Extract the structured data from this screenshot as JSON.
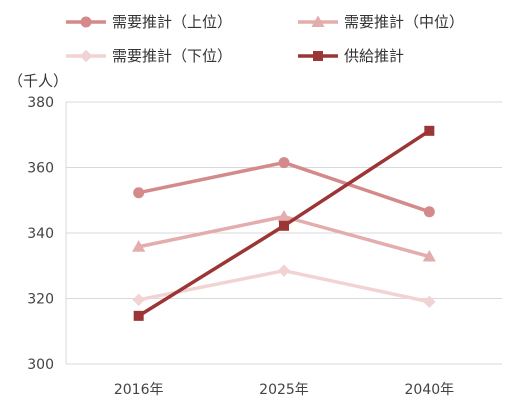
{
  "chart_data": {
    "type": "line",
    "unit_label": "（千人）",
    "categories": [
      "2016年",
      "2025年",
      "2040年"
    ],
    "ylim": [
      300,
      380
    ],
    "yticks": [
      300,
      320,
      340,
      360,
      380
    ],
    "grid": true,
    "legend_placement": "top",
    "series": [
      {
        "name": "需要推計（上位）",
        "values": [
          352.3,
          361.5,
          346.5
        ],
        "color": "#d48a8a",
        "marker": "circle"
      },
      {
        "name": "需要推計（中位）",
        "values": [
          335.8,
          345.0,
          332.8
        ],
        "color": "#e3adad",
        "marker": "triangle"
      },
      {
        "name": "需要推計（下位）",
        "values": [
          319.6,
          328.5,
          319.0
        ],
        "color": "#f1d3d3",
        "marker": "diamond"
      },
      {
        "name": "供給推計",
        "values": [
          314.7,
          342.2,
          371.2
        ],
        "color": "#9c3535",
        "marker": "square"
      }
    ]
  }
}
